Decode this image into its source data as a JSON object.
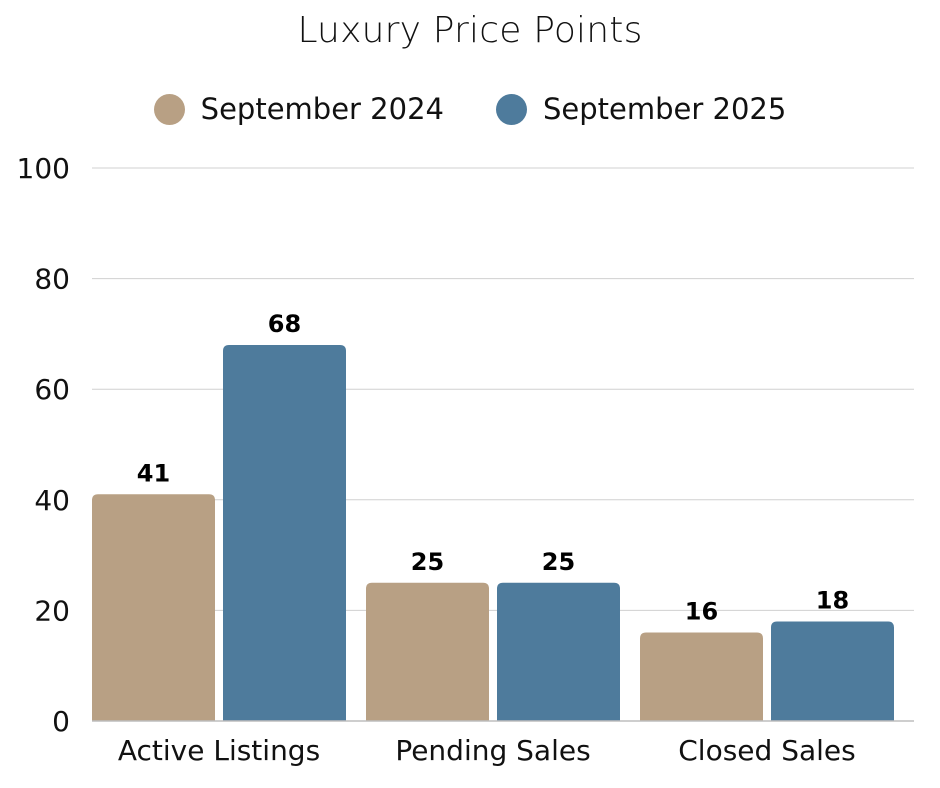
{
  "chart_data": {
    "type": "bar",
    "title": "Luxury Price Points",
    "categories": [
      "Active Listings",
      "Pending Sales",
      "Closed Sales"
    ],
    "series": [
      {
        "name": "September 2024",
        "values": [
          41,
          25,
          16
        ],
        "color": "#b8a084"
      },
      {
        "name": "September 2025",
        "values": [
          68,
          25,
          18
        ],
        "color": "#4e7b9c"
      }
    ],
    "ylim": [
      0,
      100
    ],
    "yticks": [
      0,
      20,
      40,
      60,
      80,
      100
    ],
    "grid": true,
    "legend": "top-center",
    "xlabel": "",
    "ylabel": ""
  }
}
